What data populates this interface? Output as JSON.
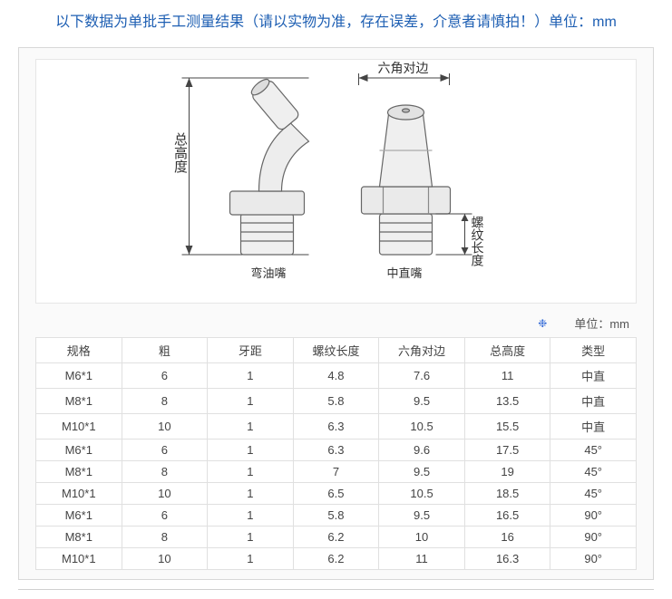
{
  "notice_text": "以下数据为单批手工测量结果（请以实物为准，存在误差，介意者请慎拍！）单位：mm",
  "diagram": {
    "label_total_height": "总高度",
    "label_hex_flat": "六角对边",
    "label_thread_len": "螺纹长度",
    "caption_bent": "弯油嘴",
    "caption_straight": "中直嘴",
    "stroke": "#555555",
    "fill_light": "#e8e8e8"
  },
  "unit_label": "单位：mm",
  "table": {
    "columns": [
      "规格",
      "粗",
      "牙距",
      "螺纹长度",
      "六角对边",
      "总高度",
      "类型"
    ],
    "rows": [
      [
        "M6*1",
        "6",
        "1",
        "4.8",
        "7.6",
        "11",
        "中直"
      ],
      [
        "M8*1",
        "8",
        "1",
        "5.8",
        "9.5",
        "13.5",
        "中直"
      ],
      [
        "M10*1",
        "10",
        "1",
        "6.3",
        "10.5",
        "15.5",
        "中直"
      ],
      [
        "M6*1",
        "6",
        "1",
        "6.3",
        "9.6",
        "17.5",
        "45°"
      ],
      [
        "M8*1",
        "8",
        "1",
        "7",
        "9.5",
        "19",
        "45°"
      ],
      [
        "M10*1",
        "10",
        "1",
        "6.5",
        "10.5",
        "18.5",
        "45°"
      ],
      [
        "M6*1",
        "6",
        "1",
        "5.8",
        "9.5",
        "16.5",
        "90°"
      ],
      [
        "M8*1",
        "8",
        "1",
        "6.2",
        "10",
        "16",
        "90°"
      ],
      [
        "M10*1",
        "10",
        "1",
        "6.2",
        "11",
        "16.3",
        "90°"
      ]
    ]
  }
}
